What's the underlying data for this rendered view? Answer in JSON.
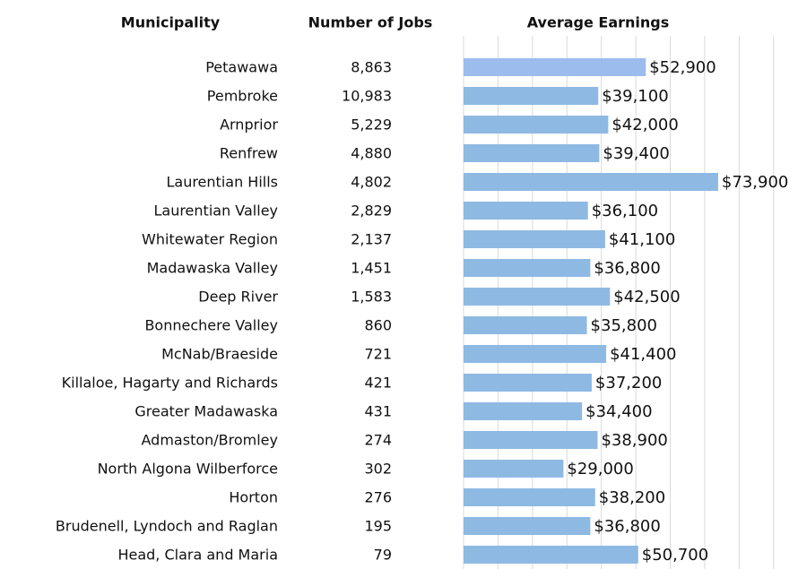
{
  "chart_data": {
    "type": "bar",
    "orientation": "horizontal",
    "headers": [
      "Municipality",
      "Number of Jobs",
      "Average Earnings"
    ],
    "categories": [
      "Petawawa",
      "Pembroke",
      "Arnprior",
      "Renfrew",
      "Laurentian Hills",
      "Laurentian Valley",
      "Whitewater Region",
      "Madawaska Valley",
      "Deep River",
      "Bonnechere Valley",
      "McNab/Braeside",
      "Killaloe, Hagarty and Richards",
      "Greater Madawaska",
      "Admaston/Bromley",
      "North Algona Wilberforce",
      "Horton",
      "Brudenell, Lyndoch and Raglan",
      "Head, Clara and Maria"
    ],
    "jobs": [
      "8,863",
      "10,983",
      "5,229",
      "4,880",
      "4,802",
      "2,829",
      "2,137",
      "1,451",
      "1,583",
      "860",
      "721",
      "421",
      "431",
      "274",
      "302",
      "276",
      "195",
      "79"
    ],
    "values": [
      52900,
      39100,
      42000,
      39400,
      73900,
      36100,
      41100,
      36800,
      42500,
      35800,
      41400,
      37200,
      34400,
      38900,
      29000,
      38200,
      36800,
      50700
    ],
    "value_labels": [
      "$52,900",
      "$39,100",
      "$42,000",
      "$39,400",
      "$73,900",
      "$36,100",
      "$41,100",
      "$36,800",
      "$42,500",
      "$35,800",
      "$41,400",
      "$37,200",
      "$34,400",
      "$38,900",
      "$29,000",
      "$38,200",
      "$36,800",
      "$50,700"
    ],
    "colors": [
      "#9dbcee",
      "#8eb9e3",
      "#8eb9e3",
      "#8eb9e3",
      "#8eb9e3",
      "#8eb9e3",
      "#8eb9e3",
      "#8eb9e3",
      "#8eb9e3",
      "#8eb9e3",
      "#8eb9e3",
      "#8eb9e3",
      "#8eb9e3",
      "#8eb9e3",
      "#8eb9e3",
      "#8eb9e3",
      "#8eb9e3",
      "#8eb9e3"
    ],
    "xlim": [
      0,
      95000
    ],
    "xticks": [
      0,
      10000,
      20000,
      30000,
      40000,
      50000,
      60000,
      70000,
      80000,
      90000
    ],
    "grid": true
  }
}
